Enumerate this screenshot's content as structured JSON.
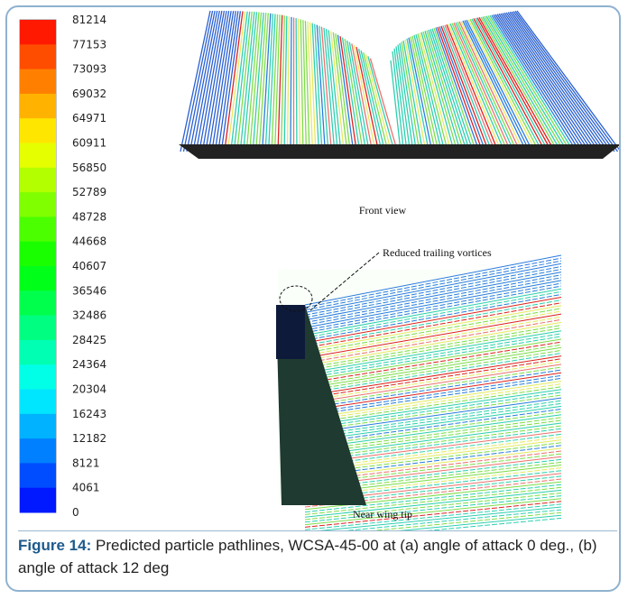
{
  "colorbar": {
    "labels": [
      81214,
      77153,
      73093,
      69032,
      64971,
      60911,
      56850,
      52789,
      48728,
      44668,
      40607,
      36546,
      32486,
      28425,
      24364,
      20304,
      16243,
      12182,
      8121,
      4061,
      0
    ]
  },
  "figure": {
    "front_label": "Front view",
    "annotation": "Reduced trailing vortices",
    "tip_label": "Near wing tip"
  },
  "caption": {
    "label": "Figure 14:",
    "text": "Predicted particle pathlines, WCSA-45-00 at (a) angle of attack 0 deg., (b) angle of attack 12 deg"
  }
}
